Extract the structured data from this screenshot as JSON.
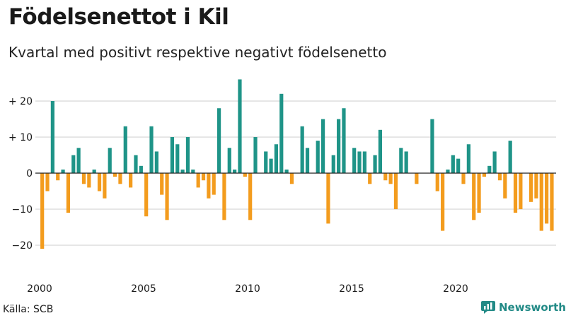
{
  "header": {
    "title": "Födelsenettot i Kil",
    "subtitle": "Kvartal med positivt respektive negativt födelsenetto"
  },
  "footer": {
    "source": "Källa: SCB",
    "brand": "Newsworthy"
  },
  "colors": {
    "positive": "#1f9488",
    "negative": "#f39c1e",
    "grid": "#cccccc",
    "zero_line": "#222222"
  },
  "chart_data": {
    "type": "bar",
    "title": "Födelsenettot i Kil",
    "subtitle": "Kvartal med positivt respektive negativt födelsenetto",
    "xlabel": "",
    "ylabel": "",
    "x_start": 2000,
    "x_start_quarter": 1,
    "ylim": [
      -25,
      30
    ],
    "y_ticks": [
      {
        "value": 20,
        "label": "+ 20"
      },
      {
        "value": 10,
        "label": "+ 10"
      },
      {
        "value": 0,
        "label": "0"
      },
      {
        "value": -10,
        "label": "−10"
      },
      {
        "value": -20,
        "label": "−20"
      }
    ],
    "x_ticks": [
      {
        "year": 2000,
        "label": "2000"
      },
      {
        "year": 2005,
        "label": "2005"
      },
      {
        "year": 2010,
        "label": "2010"
      },
      {
        "year": 2015,
        "label": "2015"
      },
      {
        "year": 2020,
        "label": "2020"
      }
    ],
    "values": [
      -21,
      -5,
      20,
      -2,
      1,
      -11,
      5,
      7,
      -3,
      -4,
      1,
      -5,
      -7,
      7,
      -1,
      -3,
      13,
      -4,
      5,
      2,
      -12,
      13,
      6,
      -6,
      -13,
      10,
      8,
      1,
      10,
      1,
      -4,
      -2,
      -7,
      -6,
      18,
      -13,
      7,
      1,
      26,
      -1,
      -13,
      10,
      0,
      6,
      4,
      8,
      22,
      1,
      -3,
      0,
      13,
      7,
      0,
      9,
      15,
      -14,
      5,
      15,
      18,
      0,
      7,
      6,
      6,
      -3,
      5,
      12,
      -2,
      -3,
      -10,
      7,
      6,
      0,
      -3,
      0,
      0,
      15,
      -5,
      -16,
      1,
      5,
      4,
      -3,
      8,
      -13,
      -11,
      -1,
      2,
      6,
      -2,
      -7,
      9,
      -11,
      -10,
      0,
      -8,
      -7,
      -16,
      -14,
      -16
    ]
  }
}
